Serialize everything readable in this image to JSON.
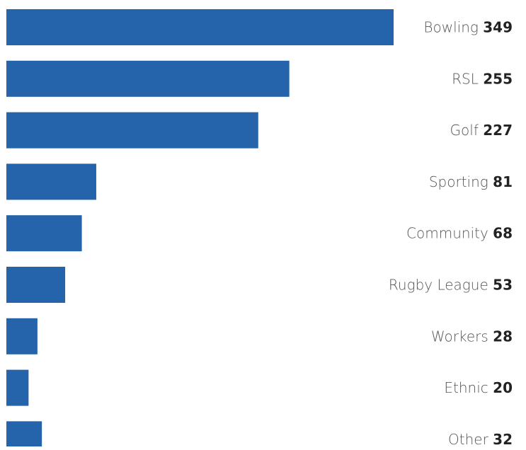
{
  "chart_data": {
    "type": "bar",
    "orientation": "horizontal",
    "categories": [
      "Bowling",
      "RSL",
      "Golf",
      "Sporting",
      "Community",
      "Rugby League",
      "Workers",
      "Ethnic",
      "Other"
    ],
    "values": [
      349,
      255,
      227,
      81,
      68,
      53,
      28,
      20,
      32
    ],
    "title": "",
    "xlabel": "",
    "ylabel": "",
    "xlim": [
      0,
      349
    ],
    "grid": false,
    "legend": "none",
    "bar_color": "#2563aa",
    "label_position": "right"
  }
}
